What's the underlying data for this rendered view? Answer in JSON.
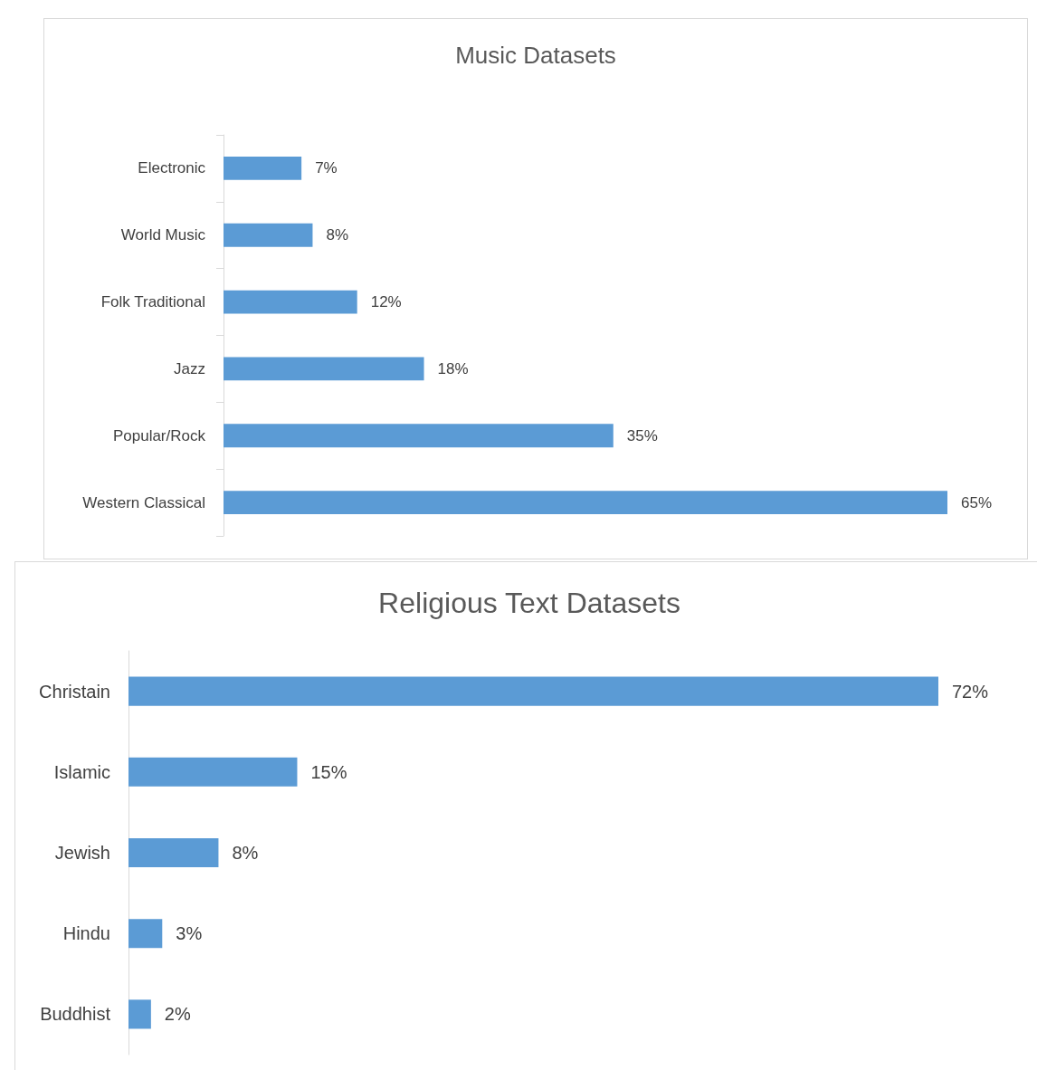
{
  "chart_data": [
    {
      "type": "bar",
      "orientation": "horizontal",
      "title": "Music Datasets",
      "categories": [
        "Electronic",
        "World Music",
        "Folk Traditional",
        "Jazz",
        "Popular/Rock",
        "Western Classical"
      ],
      "values": [
        7,
        8,
        12,
        18,
        35,
        65
      ],
      "value_labels": [
        "7%",
        "8%",
        "12%",
        "18%",
        "35%",
        "65%"
      ],
      "color": "#5b9bd5",
      "tick_labels": "y"
    },
    {
      "type": "bar",
      "orientation": "horizontal",
      "title": "Religious Text Datasets",
      "categories": [
        "Christain",
        "Islamic",
        "Jewish",
        "Hindu",
        "Buddhist"
      ],
      "values": [
        72,
        15,
        8,
        3,
        2
      ],
      "value_labels": [
        "72%",
        "15%",
        "8%",
        "3%",
        "2%"
      ],
      "color": "#5b9bd5",
      "tick_labels": "y"
    }
  ]
}
